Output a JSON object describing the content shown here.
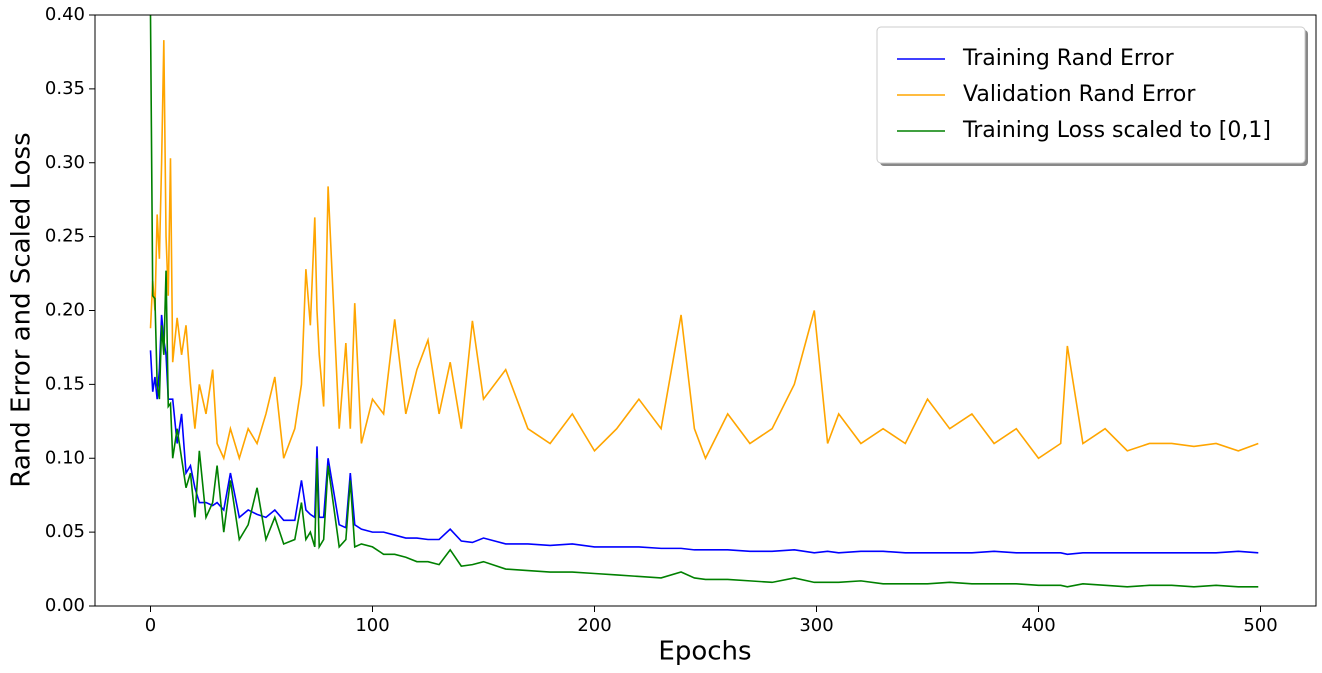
{
  "chart_data": {
    "type": "line",
    "xlabel": "Epochs",
    "ylabel": "Rand Error and Scaled Loss",
    "x": [
      0,
      1,
      2,
      3,
      4,
      5,
      6,
      7,
      8,
      9,
      10,
      12,
      14,
      16,
      18,
      20,
      22,
      25,
      28,
      30,
      33,
      36,
      40,
      44,
      48,
      52,
      56,
      60,
      65,
      68,
      70,
      72,
      74,
      75,
      76,
      78,
      80,
      85,
      88,
      90,
      92,
      95,
      100,
      105,
      110,
      115,
      120,
      125,
      130,
      135,
      140,
      145,
      150,
      160,
      170,
      180,
      190,
      200,
      210,
      220,
      230,
      239,
      245,
      250,
      260,
      270,
      280,
      290,
      299,
      305,
      310,
      320,
      330,
      340,
      350,
      360,
      370,
      380,
      390,
      400,
      410,
      413,
      420,
      430,
      440,
      450,
      460,
      470,
      480,
      490,
      499
    ],
    "series": [
      {
        "name": "Training Rand Error",
        "color": "#0000ff",
        "values": [
          0.173,
          0.145,
          0.155,
          0.14,
          0.16,
          0.197,
          0.18,
          0.17,
          0.14,
          0.14,
          0.14,
          0.11,
          0.13,
          0.09,
          0.095,
          0.08,
          0.07,
          0.07,
          0.068,
          0.07,
          0.065,
          0.09,
          0.06,
          0.065,
          0.062,
          0.06,
          0.065,
          0.058,
          0.058,
          0.085,
          0.065,
          0.062,
          0.06,
          0.108,
          0.06,
          0.06,
          0.1,
          0.055,
          0.053,
          0.09,
          0.055,
          0.052,
          0.05,
          0.05,
          0.048,
          0.046,
          0.046,
          0.045,
          0.045,
          0.052,
          0.044,
          0.043,
          0.046,
          0.042,
          0.042,
          0.041,
          0.042,
          0.04,
          0.04,
          0.04,
          0.039,
          0.039,
          0.038,
          0.038,
          0.038,
          0.037,
          0.037,
          0.038,
          0.036,
          0.037,
          0.036,
          0.037,
          0.037,
          0.036,
          0.036,
          0.036,
          0.036,
          0.037,
          0.036,
          0.036,
          0.036,
          0.035,
          0.036,
          0.036,
          0.036,
          0.036,
          0.036,
          0.036,
          0.036,
          0.037,
          0.036
        ]
      },
      {
        "name": "Validation Rand Error",
        "color": "#ffa500",
        "values": [
          0.188,
          0.22,
          0.2,
          0.265,
          0.235,
          0.3,
          0.383,
          0.25,
          0.21,
          0.303,
          0.165,
          0.195,
          0.17,
          0.19,
          0.15,
          0.12,
          0.15,
          0.13,
          0.16,
          0.11,
          0.1,
          0.12,
          0.1,
          0.12,
          0.11,
          0.13,
          0.155,
          0.1,
          0.12,
          0.15,
          0.228,
          0.19,
          0.263,
          0.2,
          0.17,
          0.135,
          0.284,
          0.12,
          0.178,
          0.12,
          0.205,
          0.11,
          0.14,
          0.13,
          0.194,
          0.13,
          0.16,
          0.18,
          0.13,
          0.165,
          0.12,
          0.193,
          0.14,
          0.16,
          0.12,
          0.11,
          0.13,
          0.105,
          0.12,
          0.14,
          0.12,
          0.197,
          0.12,
          0.1,
          0.13,
          0.11,
          0.12,
          0.15,
          0.2,
          0.11,
          0.13,
          0.11,
          0.12,
          0.11,
          0.14,
          0.12,
          0.13,
          0.11,
          0.12,
          0.1,
          0.11,
          0.176,
          0.11,
          0.12,
          0.105,
          0.11,
          0.11,
          0.108,
          0.11,
          0.105,
          0.11
        ]
      },
      {
        "name": "Training Loss scaled to [0,1]",
        "color": "#008000",
        "values": [
          0.4,
          0.21,
          0.208,
          0.15,
          0.14,
          0.19,
          0.17,
          0.227,
          0.135,
          0.137,
          0.1,
          0.12,
          0.1,
          0.08,
          0.09,
          0.06,
          0.105,
          0.06,
          0.07,
          0.095,
          0.05,
          0.085,
          0.045,
          0.055,
          0.08,
          0.045,
          0.06,
          0.042,
          0.045,
          0.07,
          0.045,
          0.05,
          0.04,
          0.1,
          0.04,
          0.045,
          0.095,
          0.04,
          0.045,
          0.085,
          0.04,
          0.042,
          0.04,
          0.035,
          0.035,
          0.033,
          0.03,
          0.03,
          0.028,
          0.038,
          0.027,
          0.028,
          0.03,
          0.025,
          0.024,
          0.023,
          0.023,
          0.022,
          0.021,
          0.02,
          0.019,
          0.023,
          0.019,
          0.018,
          0.018,
          0.017,
          0.016,
          0.019,
          0.016,
          0.016,
          0.016,
          0.017,
          0.015,
          0.015,
          0.015,
          0.016,
          0.015,
          0.015,
          0.015,
          0.014,
          0.014,
          0.013,
          0.015,
          0.014,
          0.013,
          0.014,
          0.014,
          0.013,
          0.014,
          0.013,
          0.013
        ]
      }
    ],
    "xlim": [
      -25,
      525
    ],
    "ylim": [
      0,
      0.4
    ],
    "xticks": [
      0,
      100,
      200,
      300,
      400,
      500
    ],
    "yticks": [
      {
        "value": 0,
        "label": "0.00"
      },
      0.05,
      {
        "value": 0.1,
        "label": "0.10"
      },
      0.15,
      {
        "value": 0.2,
        "label": "0.20"
      },
      0.25,
      {
        "value": 0.3,
        "label": "0.30"
      },
      0.35,
      {
        "value": 0.4,
        "label": "0.40"
      }
    ],
    "legend": "upper right"
  }
}
